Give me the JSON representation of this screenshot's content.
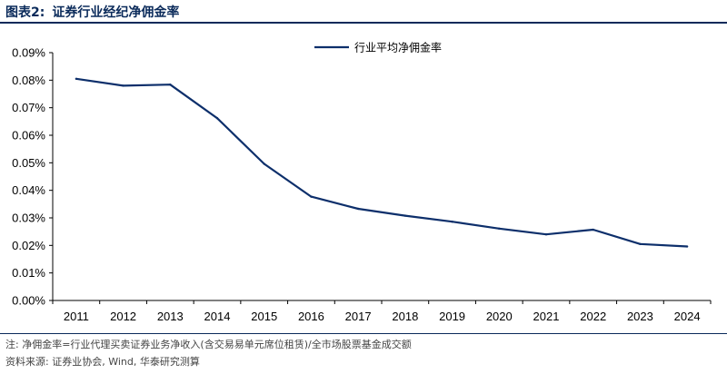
{
  "figure": {
    "label": "图表2:",
    "title": "证券行业经纪净佣金率"
  },
  "chart_data": {
    "type": "line",
    "title": "",
    "xlabel": "",
    "ylabel": "",
    "categories": [
      "2011",
      "2012",
      "2013",
      "2014",
      "2015",
      "2016",
      "2017",
      "2018",
      "2019",
      "2020",
      "2021",
      "2022",
      "2023",
      "2024"
    ],
    "series": [
      {
        "name": "行业平均净佣金率",
        "values": [
          0.0805,
          0.078,
          0.0784,
          0.0662,
          0.0496,
          0.0377,
          0.0333,
          0.0308,
          0.0286,
          0.0261,
          0.024,
          0.0257,
          0.0205,
          0.0196
        ]
      }
    ],
    "ylim": [
      0,
      0.09
    ],
    "yticks": [
      "0.00%",
      "0.01%",
      "0.02%",
      "0.03%",
      "0.04%",
      "0.05%",
      "0.06%",
      "0.07%",
      "0.08%",
      "0.09%"
    ],
    "y_unit": "%",
    "grid": false,
    "legend": "top-center",
    "line_color": "#0d2f6b"
  },
  "notes": {
    "definition": "注: 净佣金率=行业代理买卖证券业务净收入(含交易易单元席位租赁)/全市场股票基金成交额",
    "source": "资料来源: 证券业协会, Wind, 华泰研究测算"
  }
}
